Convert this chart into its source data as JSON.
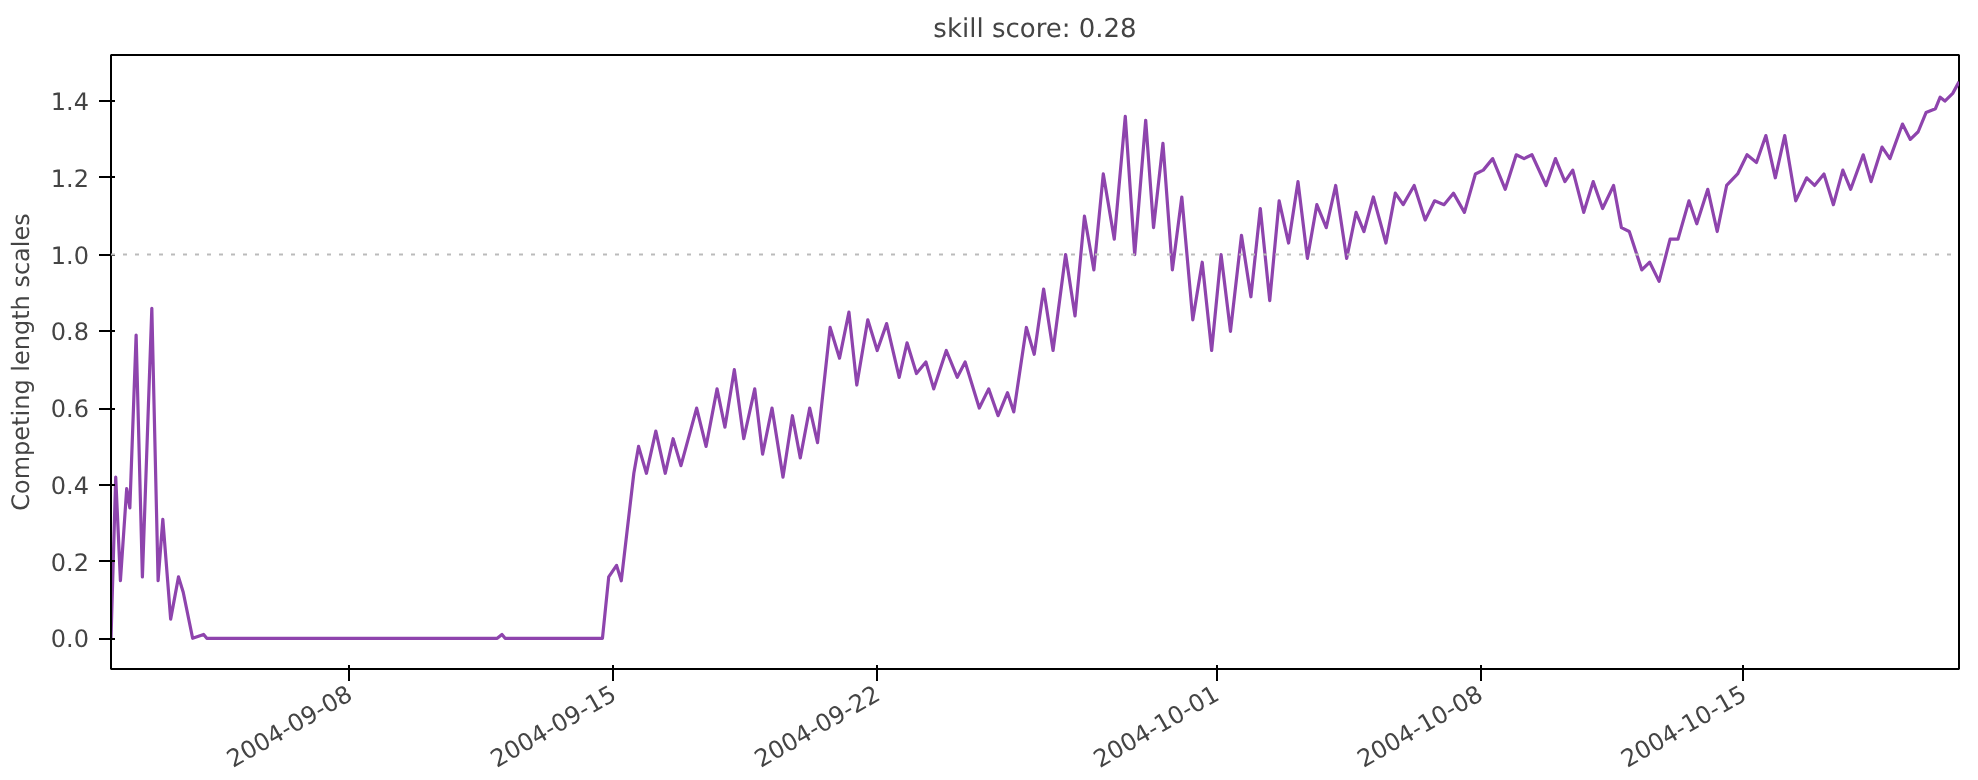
{
  "chart_data": {
    "type": "line",
    "title": "skill score: 0.28",
    "ylabel": "Competing length scales",
    "x": [
      "2004-09-01T16:00",
      "2004-09-01T19:00",
      "2004-09-01T22:00",
      "2004-09-02T02:00",
      "2004-09-02T04:00",
      "2004-09-02T08:00",
      "2004-09-02T12:00",
      "2004-09-02T18:00",
      "2004-09-02T22:00",
      "2004-09-03T01:00",
      "2004-09-03T06:00",
      "2004-09-03T11:00",
      "2004-09-03T14:00",
      "2004-09-03T20:00",
      "2004-09-04T03:00",
      "2004-09-04T05:00",
      "2004-09-11T22:00",
      "2004-09-12T01:00",
      "2004-09-12T03:00",
      "2004-09-14T17:00",
      "2004-09-14T21:00",
      "2004-09-15T02:00",
      "2004-09-15T05:00",
      "2004-09-15T13:00",
      "2004-09-15T16:00",
      "2004-09-15T21:00",
      "2004-09-16T03:00",
      "2004-09-16T09:00",
      "2004-09-16T14:00",
      "2004-09-16T19:00",
      "2004-09-17T05:00",
      "2004-09-17T11:00",
      "2004-09-17T18:00",
      "2004-09-17T23:00",
      "2004-09-18T05:00",
      "2004-09-18T11:00",
      "2004-09-18T18:00",
      "2004-09-18T23:00",
      "2004-09-19T05:00",
      "2004-09-19T12:00",
      "2004-09-19T18:00",
      "2004-09-19T23:00",
      "2004-09-20T05:00",
      "2004-09-20T10:00",
      "2004-09-20T18:00",
      "2004-09-21T00:00",
      "2004-09-21T06:00",
      "2004-09-21T11:00",
      "2004-09-21T18:00",
      "2004-09-22T00:00",
      "2004-09-22T06:00",
      "2004-09-22T14:00",
      "2004-09-22T19:00",
      "2004-09-23T01:00",
      "2004-09-23T07:00",
      "2004-09-23T12:00",
      "2004-09-23T20:00",
      "2004-09-24T03:00",
      "2004-09-24T08:00",
      "2004-09-24T17:00",
      "2004-09-24T23:00",
      "2004-09-25T05:00",
      "2004-09-25T11:00",
      "2004-09-25T15:00",
      "2004-09-25T23:00",
      "2004-09-26T04:00",
      "2004-09-26T10:00",
      "2004-09-26T16:00",
      "2004-09-27T00:00",
      "2004-09-27T06:00",
      "2004-09-27T12:00",
      "2004-09-27T18:00",
      "2004-09-28T00:00",
      "2004-09-28T07:00",
      "2004-09-28T14:00",
      "2004-09-28T20:00",
      "2004-09-29T03:00",
      "2004-09-29T08:00",
      "2004-09-29T14:00",
      "2004-09-29T20:00",
      "2004-09-30T02:00",
      "2004-09-30T09:00",
      "2004-09-30T15:00",
      "2004-09-30T21:00",
      "2004-10-01T03:00",
      "2004-10-01T09:00",
      "2004-10-01T16:00",
      "2004-10-01T22:00",
      "2004-10-02T04:00",
      "2004-10-02T10:00",
      "2004-10-02T16:00",
      "2004-10-02T22:00",
      "2004-10-03T04:00",
      "2004-10-03T10:00",
      "2004-10-03T16:00",
      "2004-10-03T22:00",
      "2004-10-04T04:00",
      "2004-10-04T11:00",
      "2004-10-04T17:00",
      "2004-10-04T22:00",
      "2004-10-05T04:00",
      "2004-10-05T12:00",
      "2004-10-05T18:00",
      "2004-10-05T23:00",
      "2004-10-06T06:00",
      "2004-10-06T13:00",
      "2004-10-06T19:00",
      "2004-10-07T01:00",
      "2004-10-07T07:00",
      "2004-10-07T14:00",
      "2004-10-07T21:00",
      "2004-10-08T02:00",
      "2004-10-08T08:00",
      "2004-10-08T16:00",
      "2004-10-08T23:00",
      "2004-10-09T04:00",
      "2004-10-09T09:00",
      "2004-10-09T18:00",
      "2004-10-10T00:00",
      "2004-10-10T06:00",
      "2004-10-10T11:00",
      "2004-10-10T18:00",
      "2004-10-11T00:00",
      "2004-10-11T06:00",
      "2004-10-11T13:00",
      "2004-10-11T18:00",
      "2004-10-11T23:00",
      "2004-10-12T07:00",
      "2004-10-12T12:00",
      "2004-10-12T18:00",
      "2004-10-13T01:00",
      "2004-10-13T06:00",
      "2004-10-13T13:00",
      "2004-10-13T18:00",
      "2004-10-14T01:00",
      "2004-10-14T07:00",
      "2004-10-14T13:00",
      "2004-10-14T20:00",
      "2004-10-15T02:00",
      "2004-10-15T08:00",
      "2004-10-15T14:00",
      "2004-10-15T20:00",
      "2004-10-16T02:00",
      "2004-10-16T09:00",
      "2004-10-16T16:00",
      "2004-10-16T21:00",
      "2004-10-17T03:00",
      "2004-10-17T09:00",
      "2004-10-17T15:00",
      "2004-10-17T20:00",
      "2004-10-18T04:00",
      "2004-10-18T09:00",
      "2004-10-18T16:00",
      "2004-10-18T21:00",
      "2004-10-19T05:00",
      "2004-10-19T10:00",
      "2004-10-19T15:00",
      "2004-10-19T20:00",
      "2004-10-20T02:00",
      "2004-10-20T05:00",
      "2004-10-20T08:00",
      "2004-10-20T13:00",
      "2004-10-20T17:00"
    ],
    "series": [
      {
        "color": "#8e44ad",
        "values": [
          0,
          0.42,
          0.15,
          0.39,
          0.34,
          0.79,
          0.16,
          0.86,
          0.15,
          0.31,
          0.05,
          0.16,
          0.12,
          0,
          0.01,
          0,
          0,
          0.01,
          0,
          0,
          0.16,
          0.19,
          0.15,
          0.43,
          0.5,
          0.43,
          0.54,
          0.43,
          0.52,
          0.45,
          0.6,
          0.5,
          0.65,
          0.55,
          0.7,
          0.52,
          0.65,
          0.48,
          0.6,
          0.42,
          0.58,
          0.47,
          0.6,
          0.51,
          0.81,
          0.73,
          0.85,
          0.66,
          0.83,
          0.75,
          0.82,
          0.68,
          0.77,
          0.69,
          0.72,
          0.65,
          0.75,
          0.68,
          0.72,
          0.6,
          0.65,
          0.58,
          0.64,
          0.59,
          0.81,
          0.74,
          0.91,
          0.75,
          1.0,
          0.84,
          1.1,
          0.96,
          1.21,
          1.04,
          1.36,
          1.0,
          1.35,
          1.07,
          1.29,
          0.96,
          1.15,
          0.83,
          0.98,
          0.75,
          1.0,
          0.8,
          1.05,
          0.89,
          1.12,
          0.88,
          1.14,
          1.03,
          1.19,
          0.99,
          1.13,
          1.07,
          1.18,
          0.99,
          1.11,
          1.06,
          1.15,
          1.03,
          1.16,
          1.13,
          1.18,
          1.09,
          1.14,
          1.13,
          1.16,
          1.11,
          1.21,
          1.22,
          1.25,
          1.17,
          1.26,
          1.25,
          1.26,
          1.18,
          1.25,
          1.19,
          1.22,
          1.11,
          1.19,
          1.12,
          1.18,
          1.07,
          1.06,
          0.96,
          0.98,
          0.93,
          1.04,
          1.04,
          1.14,
          1.08,
          1.17,
          1.06,
          1.18,
          1.21,
          1.26,
          1.24,
          1.31,
          1.2,
          1.31,
          1.14,
          1.2,
          1.18,
          1.21,
          1.13,
          1.22,
          1.17,
          1.26,
          1.19,
          1.28,
          1.25,
          1.34,
          1.3,
          1.32,
          1.37,
          1.38,
          1.41,
          1.4,
          1.42,
          1.45
        ]
      }
    ],
    "xlim": [
      "2004-09-01T16:00",
      "2004-10-20T17:00"
    ],
    "xticks": [
      {
        "value": "2004-09-08",
        "label": "2004-09-08"
      },
      {
        "value": "2004-09-15",
        "label": "2004-09-15"
      },
      {
        "value": "2004-09-22",
        "label": "2004-09-22"
      },
      {
        "value": "2004-10-01",
        "label": "2004-10-01"
      },
      {
        "value": "2004-10-08",
        "label": "2004-10-08"
      },
      {
        "value": "2004-10-15",
        "label": "2004-10-15"
      }
    ],
    "ylim": [
      -0.08,
      1.52
    ],
    "yticks": [
      {
        "value": 0,
        "label": "0.0"
      },
      {
        "value": 0.2,
        "label": "0.2"
      },
      {
        "value": 0.4,
        "label": "0.4"
      },
      {
        "value": 0.6,
        "label": "0.6"
      },
      {
        "value": 0.8,
        "label": "0.8"
      },
      {
        "value": 1.0,
        "label": "1.0"
      },
      {
        "value": 1.2,
        "label": "1.2"
      },
      {
        "value": 1.4,
        "label": "1.4"
      }
    ],
    "ref_lines": [
      {
        "axis": "y",
        "value": 1.0,
        "color": "#bbbbbb",
        "line_style": "dotted"
      }
    ],
    "grid": false,
    "marker": "none",
    "line_style": "solid"
  }
}
